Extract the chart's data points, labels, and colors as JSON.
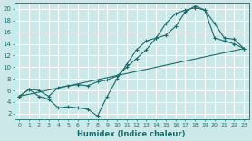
{
  "xlabel": "Humidex (Indice chaleur)",
  "bg_color": "#cce8e8",
  "line_color": "#1a6b6b",
  "grid_color": "#b8d8d8",
  "xlim": [
    -0.5,
    23.5
  ],
  "ylim": [
    1,
    21
  ],
  "xticks": [
    0,
    1,
    2,
    3,
    4,
    5,
    6,
    7,
    8,
    9,
    10,
    11,
    12,
    13,
    14,
    15,
    16,
    17,
    18,
    19,
    20,
    21,
    22,
    23
  ],
  "yticks": [
    2,
    4,
    6,
    8,
    10,
    12,
    14,
    16,
    18,
    20
  ],
  "line1_x": [
    0,
    1,
    2,
    3,
    4,
    5,
    6,
    7,
    8,
    9,
    10,
    11,
    12,
    13,
    14,
    15,
    16,
    17,
    18,
    19,
    20,
    21,
    22,
    23
  ],
  "line1_y": [
    5.0,
    6.2,
    5.0,
    4.5,
    3.0,
    3.2,
    3.0,
    2.8,
    1.6,
    5.0,
    8.0,
    10.5,
    13.0,
    14.5,
    15.0,
    17.5,
    19.2,
    19.8,
    20.2,
    19.8,
    17.5,
    15.0,
    14.8,
    13.2
  ],
  "line2_x": [
    0,
    1,
    2,
    3,
    4,
    5,
    6,
    7,
    8,
    9,
    10,
    11,
    12,
    13,
    14,
    15,
    16,
    17,
    18,
    19,
    20,
    21,
    22,
    23
  ],
  "line2_y": [
    5.0,
    6.2,
    6.0,
    5.0,
    6.5,
    6.8,
    7.0,
    6.8,
    7.5,
    7.8,
    8.5,
    10.0,
    11.5,
    13.0,
    15.0,
    15.5,
    17.0,
    19.5,
    20.5,
    19.8,
    15.0,
    14.5,
    14.0,
    13.2
  ],
  "line3_x": [
    0,
    23
  ],
  "line3_y": [
    5.0,
    13.2
  ]
}
